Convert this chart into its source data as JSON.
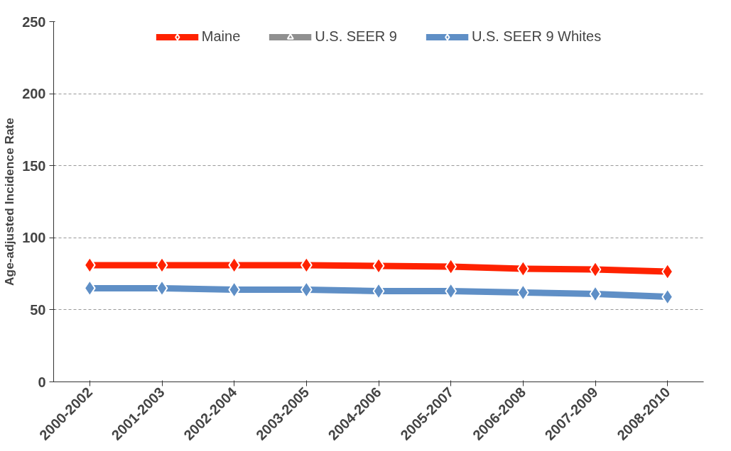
{
  "chart_data": {
    "type": "line",
    "ylabel": "Age-adjusted Incidence Rate",
    "categories": [
      "2000-2002",
      "2001-2003",
      "2002-2004",
      "2003-2005",
      "2004-2006",
      "2005-2007",
      "2006-2008",
      "2007-2009",
      "2008-2010"
    ],
    "series": [
      {
        "name": "Maine",
        "color": "#ff2200",
        "marker": "diamond",
        "values": [
          81,
          81,
          81,
          81,
          80.5,
          80,
          78.5,
          78,
          76.5
        ]
      },
      {
        "name": "U.S. SEER 9",
        "color": "#909090",
        "marker": "triangle",
        "values": [
          null,
          null,
          null,
          null,
          null,
          null,
          null,
          null,
          null
        ]
      },
      {
        "name": "U.S. SEER 9 Whites",
        "color": "#5f8fc6",
        "marker": "diamond",
        "values": [
          65,
          65,
          64,
          64,
          63,
          63,
          62,
          61,
          59
        ]
      }
    ],
    "ylim": [
      0,
      250
    ],
    "yticks": [
      0,
      50,
      100,
      150,
      200,
      250
    ],
    "grid": "y",
    "legend": "top",
    "line_style": "solid"
  }
}
